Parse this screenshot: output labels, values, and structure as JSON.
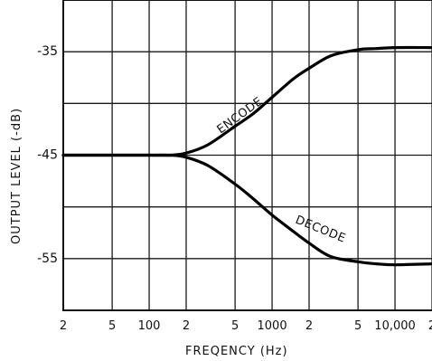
{
  "chart_data": {
    "type": "line",
    "title": "",
    "xlabel": "FREQENCY (Hz)",
    "ylabel": "OUTPUT LEVEL (-dB)",
    "x_scale": "log",
    "xlim": [
      20,
      20000
    ],
    "ylim": [
      -60,
      -30
    ],
    "grid": true,
    "x_ticks": [
      {
        "value": 20,
        "label": "2"
      },
      {
        "value": 50,
        "label": "5"
      },
      {
        "value": 100,
        "label": "100"
      },
      {
        "value": 200,
        "label": "2"
      },
      {
        "value": 500,
        "label": "5"
      },
      {
        "value": 1000,
        "label": "1000"
      },
      {
        "value": 2000,
        "label": "2"
      },
      {
        "value": 5000,
        "label": "5"
      },
      {
        "value": 10000,
        "label": "10,000"
      },
      {
        "value": 20000,
        "label": "2"
      }
    ],
    "y_ticks": [
      {
        "value": -35,
        "label": "-35"
      },
      {
        "value": -45,
        "label": "-45"
      },
      {
        "value": -55,
        "label": "-55"
      }
    ],
    "series": [
      {
        "name": "ENCODE",
        "x": [
          20,
          50,
          100,
          150,
          200,
          300,
          500,
          700,
          1000,
          1500,
          2000,
          3000,
          5000,
          7000,
          10000,
          20000
        ],
        "y": [
          -45,
          -45,
          -45,
          -45,
          -44.8,
          -44,
          -42.2,
          -41,
          -39.4,
          -37.6,
          -36.6,
          -35.4,
          -34.8,
          -34.7,
          -34.6,
          -34.6
        ]
      },
      {
        "name": "DECODE",
        "x": [
          20,
          50,
          100,
          150,
          200,
          300,
          500,
          700,
          1000,
          1500,
          2000,
          3000,
          5000,
          7000,
          10000,
          20000
        ],
        "y": [
          -45,
          -45,
          -45,
          -45,
          -45.2,
          -46,
          -47.8,
          -49.2,
          -50.8,
          -52.4,
          -53.5,
          -54.8,
          -55.3,
          -55.5,
          -55.6,
          -55.5
        ]
      }
    ]
  }
}
